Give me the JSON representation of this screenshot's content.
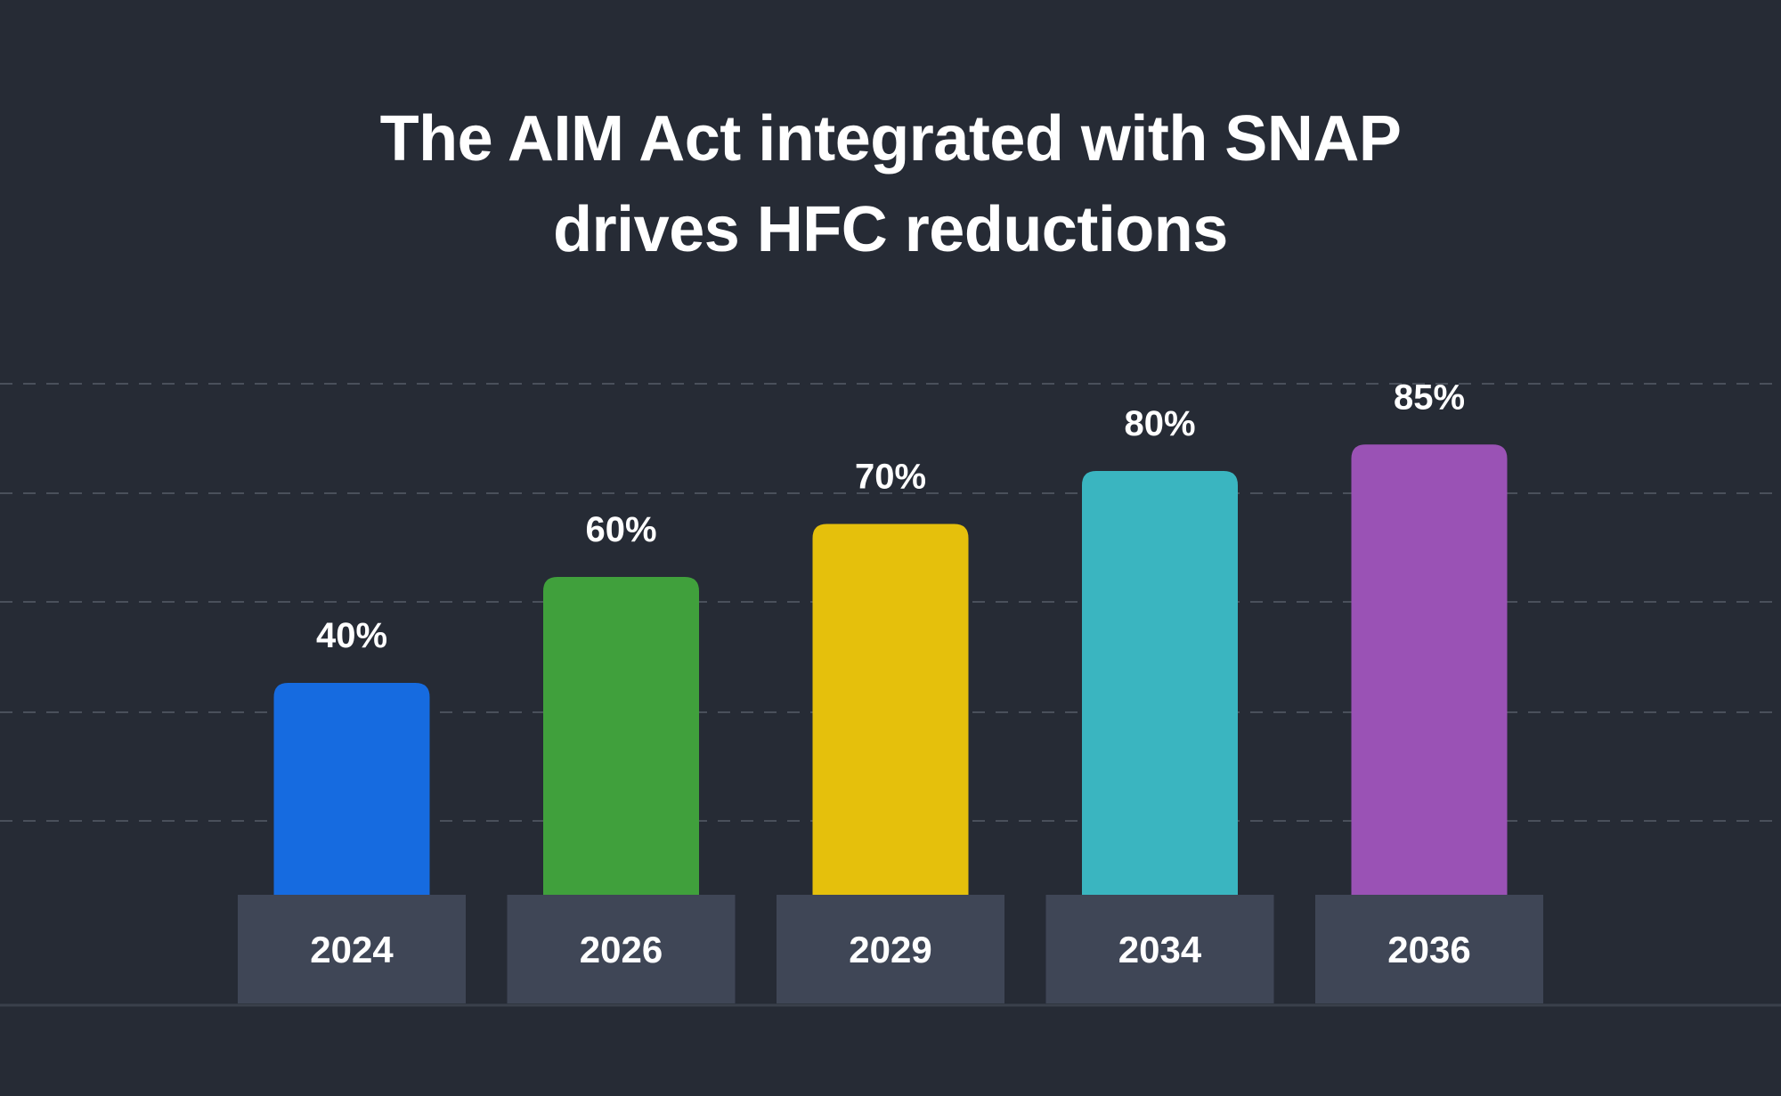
{
  "chart_data": {
    "type": "bar",
    "title_lines": [
      "The AIM Act integrated with SNAP",
      "drives HFC reductions"
    ],
    "categories": [
      "2024",
      "2026",
      "2029",
      "2034",
      "2036"
    ],
    "values": [
      40,
      60,
      70,
      80,
      85
    ],
    "value_labels": [
      "40%",
      "60%",
      "70%",
      "80%",
      "85%"
    ],
    "colors": [
      "#166be0",
      "#40a03c",
      "#e5c00c",
      "#3ab5c0",
      "#9a52b5"
    ],
    "xlabel": "",
    "ylabel": "",
    "ylim": [
      0,
      100
    ],
    "grid": true,
    "legend": "none"
  },
  "theme": {
    "background": "#262b35",
    "category_box": "#3f4656",
    "gridline": "#4a505b"
  }
}
